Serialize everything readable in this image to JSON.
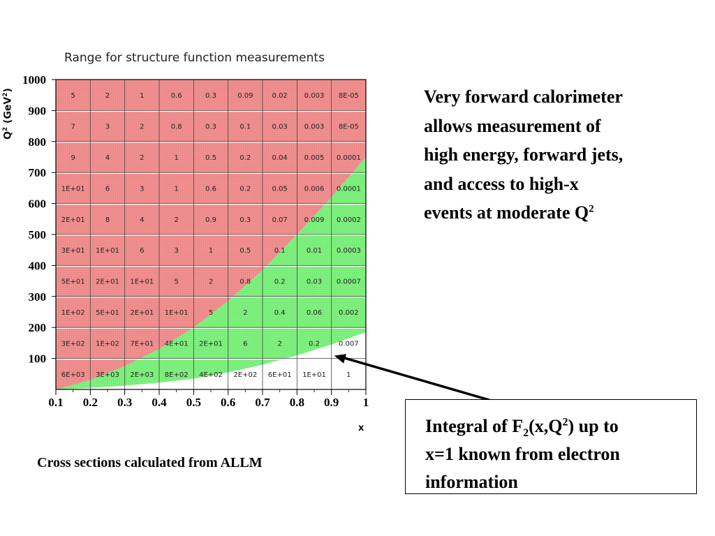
{
  "annotation": {
    "lines": [
      "Very forward calorimeter",
      "allows measurement of",
      "high energy, forward jets,",
      "and access to high-x",
      "events at moderate Q",
      "2"
    ]
  },
  "footnote": "Cross sections calculated from ALLM",
  "note_box": {
    "line1_a": "Integral of F",
    "line1_sub": "2",
    "line1_b": "(x,Q",
    "line1_sup": "2",
    "line1_c": ") up to",
    "line2": "x=1 known from electron",
    "line3": "information"
  },
  "chart_data": {
    "type": "heatmap",
    "title": "Range for structure function measurements",
    "xlabel": "x",
    "ylabel_main": "Q",
    "ylabel_sup": "2",
    "ylabel_rest": " (GeV",
    "ylabel_sup2": "2",
    "ylabel_end": ")",
    "xlim": [
      0.1,
      1.0
    ],
    "ylim": [
      0,
      1000
    ],
    "x_ticks": [
      "0.1",
      "0.2",
      "0.3",
      "0.4",
      "0.5",
      "0.6",
      "0.7",
      "0.8",
      "0.9",
      "1"
    ],
    "y_ticks": [
      "100",
      "200",
      "300",
      "400",
      "500",
      "600",
      "700",
      "800",
      "900",
      "1000"
    ],
    "colors": {
      "red_region": "#f08f8f",
      "green_region": "#7ef07e",
      "white_region": "#ffffff",
      "grid": "#000000"
    },
    "x_bin_edges": [
      0.1,
      0.2,
      0.3,
      0.4,
      0.5,
      0.6,
      0.7,
      0.8,
      0.9,
      1.0
    ],
    "q2_bin_centers": [
      950,
      850,
      750,
      650,
      550,
      450,
      350,
      250,
      150,
      50
    ],
    "cell_values": [
      [
        "5",
        "2",
        "1",
        "0.6",
        "0.3",
        "0.09",
        "0.02",
        "0.003",
        "8E-05"
      ],
      [
        "7",
        "3",
        "2",
        "0.8",
        "0.3",
        "0.1",
        "0.03",
        "0.003",
        "8E-05"
      ],
      [
        "9",
        "4",
        "2",
        "1",
        "0.5",
        "0.2",
        "0.04",
        "0.005",
        "0.0001"
      ],
      [
        "1E+01",
        "6",
        "3",
        "1",
        "0.6",
        "0.2",
        "0.05",
        "0.006",
        "0.0001"
      ],
      [
        "2E+01",
        "8",
        "4",
        "2",
        "0.9",
        "0.3",
        "0.07",
        "0.009",
        "0.0002"
      ],
      [
        "3E+01",
        "1E+01",
        "6",
        "3",
        "1",
        "0.5",
        "0.1",
        "0.01",
        "0.0003"
      ],
      [
        "5E+01",
        "2E+01",
        "1E+01",
        "5",
        "2",
        "0.8",
        "0.2",
        "0.03",
        "0.0007"
      ],
      [
        "1E+02",
        "5E+01",
        "2E+01",
        "1E+01",
        "5",
        "2",
        "0.4",
        "0.06",
        "0.002"
      ],
      [
        "3E+02",
        "1E+02",
        "7E+01",
        "4E+01",
        "2E+01",
        "6",
        "2",
        "0.2",
        "0.007"
      ],
      [
        "6E+03",
        "3E+03",
        "2E+03",
        "8E+02",
        "4E+02",
        "2E+02",
        "6E+01",
        "1E+01",
        "1"
      ]
    ],
    "green_upper_boundary": [
      [
        0.1,
        0
      ],
      [
        0.2,
        30
      ],
      [
        0.3,
        75
      ],
      [
        0.4,
        130
      ],
      [
        0.5,
        200
      ],
      [
        0.6,
        285
      ],
      [
        0.7,
        385
      ],
      [
        0.8,
        500
      ],
      [
        0.9,
        620
      ],
      [
        1.0,
        750
      ]
    ],
    "green_lower_boundary": [
      [
        0.1,
        0
      ],
      [
        0.2,
        5
      ],
      [
        0.3,
        12
      ],
      [
        0.4,
        22
      ],
      [
        0.5,
        35
      ],
      [
        0.6,
        55
      ],
      [
        0.7,
        80
      ],
      [
        0.8,
        110
      ],
      [
        0.9,
        145
      ],
      [
        1.0,
        185
      ]
    ]
  }
}
